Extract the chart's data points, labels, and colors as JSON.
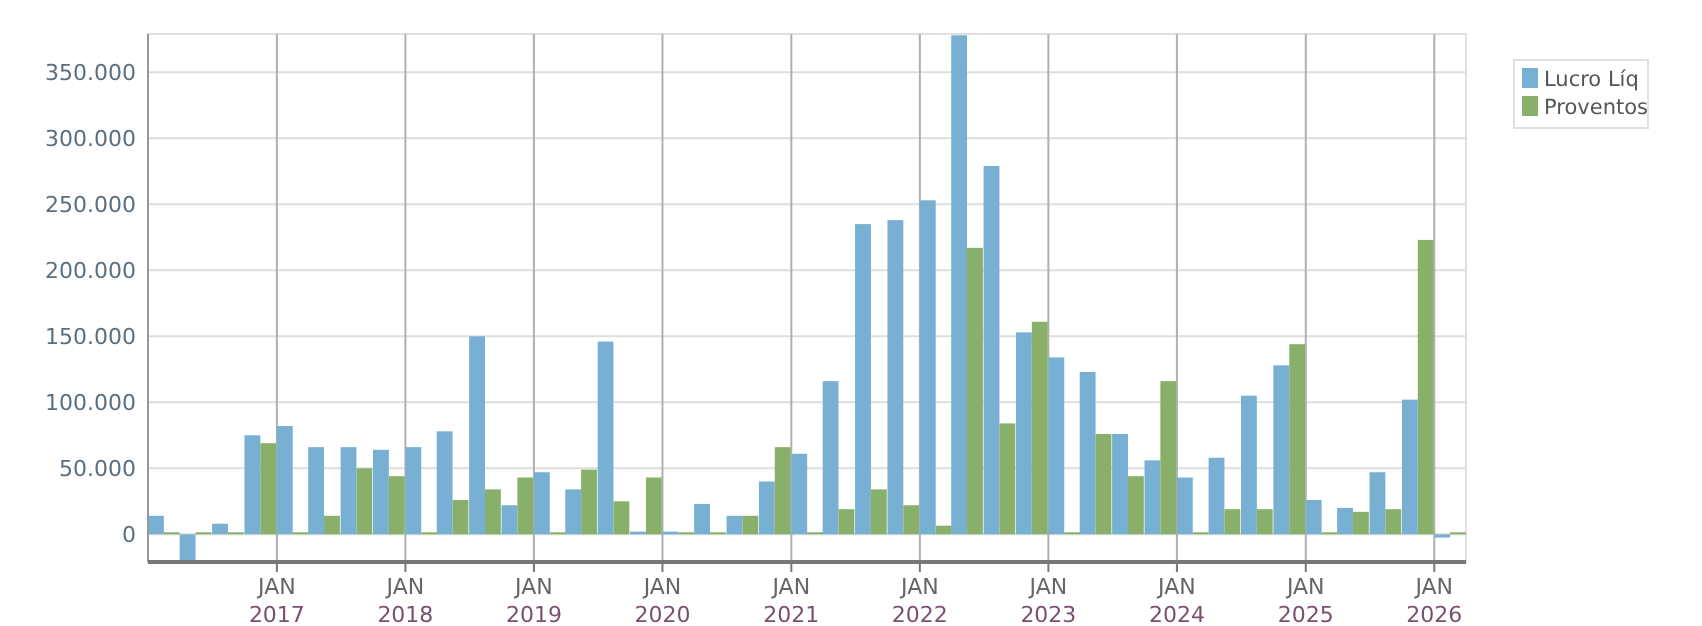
{
  "chart_data": {
    "type": "bar",
    "x": [
      "2016-02-15",
      "2016-05-15",
      "2016-08-15",
      "2016-11-15",
      "2017-02-15",
      "2017-05-15",
      "2017-08-15",
      "2017-11-15",
      "2018-02-15",
      "2018-05-15",
      "2018-08-15",
      "2018-11-15",
      "2019-02-15",
      "2019-05-15",
      "2019-08-15",
      "2019-11-15",
      "2020-02-15",
      "2020-05-15",
      "2020-08-15",
      "2020-11-15",
      "2021-02-15",
      "2021-05-15",
      "2021-08-15",
      "2021-11-15",
      "2022-02-15",
      "2022-05-15",
      "2022-08-15",
      "2022-11-15",
      "2023-02-15",
      "2023-05-15",
      "2023-08-15",
      "2023-11-15",
      "2024-02-15",
      "2024-05-15",
      "2024-08-15",
      "2024-11-15",
      "2025-02-15",
      "2025-05-15",
      "2025-08-15",
      "2025-11-15",
      "2026-02-15"
    ],
    "series": [
      {
        "name": "Lucro Líq",
        "color": "#78b0d3",
        "values": [
          14000,
          -20000,
          8000,
          75000,
          82000,
          66000,
          66000,
          64000,
          66000,
          78000,
          150000,
          22000,
          47000,
          34000,
          146000,
          2000,
          2000,
          23000,
          14000,
          40000,
          61000,
          116000,
          235000,
          238000,
          253000,
          378000,
          279000,
          153000,
          134000,
          123000,
          76000,
          56000,
          43000,
          58000,
          105000,
          128000,
          26000,
          20000,
          47000,
          102000,
          -2500
        ]
      },
      {
        "name": "Proventos",
        "color": "#88b06a",
        "values": [
          0,
          0,
          0,
          69000,
          0,
          14000,
          50000,
          44000,
          0,
          26000,
          34000,
          43000,
          0,
          49000,
          25000,
          43000,
          0,
          0,
          14000,
          66000,
          0,
          19000,
          34000,
          22000,
          6500,
          217000,
          84000,
          161000,
          0,
          76000,
          44000,
          116000,
          0,
          19000,
          19000,
          144000,
          0,
          17000,
          19000,
          223000,
          0
        ]
      }
    ],
    "xlim": [
      "2016-01-01",
      "2026-04-01"
    ],
    "xticks": [
      {
        "value": "2017-01-01",
        "label": "JAN\n2017"
      },
      {
        "value": "2018-01-01",
        "label": "JAN\n2018"
      },
      {
        "value": "2019-01-01",
        "label": "JAN\n2019"
      },
      {
        "value": "2020-01-01",
        "label": "JAN\n2020"
      },
      {
        "value": "2021-01-01",
        "label": "JAN\n2021"
      },
      {
        "value": "2022-01-01",
        "label": "JAN\n2022"
      },
      {
        "value": "2023-01-01",
        "label": "JAN\n2023"
      },
      {
        "value": "2024-01-01",
        "label": "JAN\n2024"
      },
      {
        "value": "2025-01-01",
        "label": "JAN\n2025"
      },
      {
        "value": "2026-01-01",
        "label": "JAN\n2026"
      }
    ],
    "ylim": [
      -21000,
      379000
    ],
    "yticks": [
      {
        "value": 0,
        "label": "0"
      },
      {
        "value": 50000,
        "label": "50.000"
      },
      {
        "value": 100000,
        "label": "100.000"
      },
      {
        "value": 150000,
        "label": "150.000"
      },
      {
        "value": 200000,
        "label": "200.000"
      },
      {
        "value": 250000,
        "label": "250.000"
      },
      {
        "value": 300000,
        "label": "300.000"
      },
      {
        "value": 350000,
        "label": "350.000"
      }
    ],
    "grid": true,
    "legend": "top right"
  }
}
